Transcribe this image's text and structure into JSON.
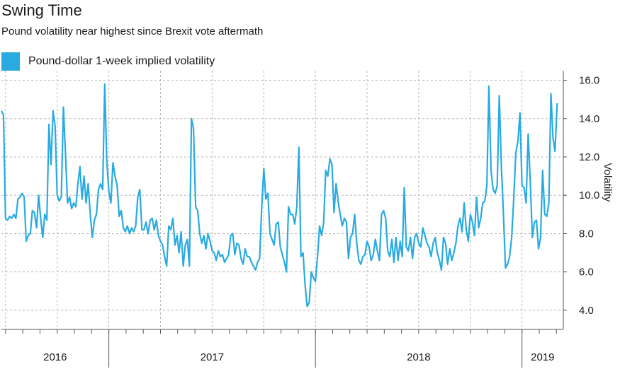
{
  "header": {
    "title": "Swing Time",
    "subtitle": "Pound volatility near highest since Brexit vote aftermath"
  },
  "legend": {
    "label": "Pound-dollar 1-week implied volatility",
    "color": "#29ABE2"
  },
  "chart_data": {
    "type": "line",
    "title": "Swing Time",
    "subtitle": "Pound volatility near highest since Brexit vote aftermath",
    "ylabel": "Volatility",
    "xlabel": "",
    "ylim": [
      3.0,
      16.5
    ],
    "yticks": [
      4.0,
      6.0,
      8.0,
      10.0,
      12.0,
      14.0,
      16.0
    ],
    "ytick_labels": [
      "4.0",
      "6.0",
      "8.0",
      "10.0",
      "12.0",
      "14.0",
      "16.0"
    ],
    "xlim": [
      2016.48,
      2019.2
    ],
    "year_labels": [
      {
        "label": "2016",
        "center": 2016.74
      },
      {
        "label": "2017",
        "center": 2017.5
      },
      {
        "label": "2018",
        "center": 2018.5
      },
      {
        "label": "2019",
        "center": 2019.1
      }
    ],
    "year_boundaries": [
      2017.0,
      2018.0,
      2019.0
    ],
    "grid": true,
    "legend_position": "top-left",
    "series": [
      {
        "name": "Pound-dollar 1-week implied volatility",
        "color": "#29ABE2",
        "x": [
          2016.48,
          2016.49,
          2016.5,
          2016.51,
          2016.52,
          2016.53,
          2016.54,
          2016.55,
          2016.56,
          2016.57,
          2016.58,
          2016.59,
          2016.6,
          2016.61,
          2016.62,
          2016.63,
          2016.64,
          2016.65,
          2016.66,
          2016.67,
          2016.68,
          2016.69,
          2016.7,
          2016.71,
          2016.72,
          2016.73,
          2016.74,
          2016.75,
          2016.76,
          2016.77,
          2016.78,
          2016.79,
          2016.8,
          2016.81,
          2016.82,
          2016.83,
          2016.84,
          2016.85,
          2016.86,
          2016.87,
          2016.88,
          2016.89,
          2016.9,
          2016.91,
          2016.92,
          2016.93,
          2016.94,
          2016.95,
          2016.96,
          2016.97,
          2016.98,
          2016.99,
          2017.0,
          2017.01,
          2017.02,
          2017.03,
          2017.04,
          2017.05,
          2017.06,
          2017.07,
          2017.08,
          2017.09,
          2017.1,
          2017.11,
          2017.12,
          2017.13,
          2017.14,
          2017.15,
          2017.16,
          2017.17,
          2017.18,
          2017.19,
          2017.2,
          2017.21,
          2017.22,
          2017.23,
          2017.24,
          2017.25,
          2017.26,
          2017.27,
          2017.28,
          2017.29,
          2017.3,
          2017.31,
          2017.32,
          2017.33,
          2017.34,
          2017.35,
          2017.36,
          2017.37,
          2017.38,
          2017.39,
          2017.4,
          2017.41,
          2017.42,
          2017.43,
          2017.44,
          2017.45,
          2017.46,
          2017.47,
          2017.48,
          2017.49,
          2017.5,
          2017.51,
          2017.52,
          2017.53,
          2017.54,
          2017.55,
          2017.56,
          2017.57,
          2017.58,
          2017.59,
          2017.6,
          2017.61,
          2017.62,
          2017.63,
          2017.64,
          2017.65,
          2017.66,
          2017.67,
          2017.68,
          2017.69,
          2017.7,
          2017.71,
          2017.72,
          2017.73,
          2017.74,
          2017.75,
          2017.76,
          2017.77,
          2017.78,
          2017.79,
          2017.8,
          2017.81,
          2017.82,
          2017.83,
          2017.84,
          2017.85,
          2017.86,
          2017.87,
          2017.88,
          2017.89,
          2017.9,
          2017.91,
          2017.92,
          2017.93,
          2017.94,
          2017.95,
          2017.96,
          2017.97,
          2017.98,
          2017.99,
          2018.0,
          2018.01,
          2018.02,
          2018.03,
          2018.04,
          2018.05,
          2018.06,
          2018.07,
          2018.08,
          2018.09,
          2018.1,
          2018.11,
          2018.12,
          2018.13,
          2018.14,
          2018.15,
          2018.16,
          2018.17,
          2018.18,
          2018.19,
          2018.2,
          2018.21,
          2018.22,
          2018.23,
          2018.24,
          2018.25,
          2018.26,
          2018.27,
          2018.28,
          2018.29,
          2018.3,
          2018.31,
          2018.32,
          2018.33,
          2018.34,
          2018.35,
          2018.36,
          2018.37,
          2018.38,
          2018.39,
          2018.4,
          2018.41,
          2018.42,
          2018.43,
          2018.44,
          2018.45,
          2018.46,
          2018.47,
          2018.48,
          2018.49,
          2018.5,
          2018.51,
          2018.52,
          2018.53,
          2018.54,
          2018.55,
          2018.56,
          2018.57,
          2018.58,
          2018.59,
          2018.6,
          2018.61,
          2018.62,
          2018.63,
          2018.64,
          2018.65,
          2018.66,
          2018.67,
          2018.68,
          2018.69,
          2018.7,
          2018.71,
          2018.72,
          2018.73,
          2018.74,
          2018.75,
          2018.76,
          2018.77,
          2018.78,
          2018.79,
          2018.8,
          2018.81,
          2018.82,
          2018.83,
          2018.84,
          2018.85,
          2018.86,
          2018.87,
          2018.88,
          2018.89,
          2018.9,
          2018.91,
          2018.92,
          2018.93,
          2018.94,
          2018.95,
          2018.96,
          2018.97,
          2018.98,
          2018.99,
          2019.0,
          2019.01,
          2019.02,
          2019.03,
          2019.04,
          2019.05,
          2019.06,
          2019.07,
          2019.08,
          2019.09,
          2019.1,
          2019.11,
          2019.12,
          2019.13,
          2019.14,
          2019.15,
          2019.16,
          2019.17
        ],
        "values": [
          14.4,
          14.2,
          8.8,
          8.7,
          8.9,
          8.8,
          9.0,
          8.8,
          9.8,
          9.9,
          10.1,
          9.9,
          7.6,
          7.9,
          8.0,
          9.2,
          9.1,
          8.3,
          10.0,
          8.8,
          7.8,
          9.0,
          8.7,
          13.7,
          11.6,
          14.4,
          13.6,
          10.0,
          9.7,
          9.9,
          14.6,
          12.2,
          9.6,
          9.9,
          9.3,
          9.6,
          9.4,
          10.6,
          11.5,
          9.8,
          11.0,
          9.6,
          10.6,
          9.0,
          7.8,
          8.7,
          9.0,
          10.3,
          10.6,
          10.3,
          15.8,
          11.8,
          10.2,
          9.6,
          11.7,
          11.0,
          10.5,
          8.9,
          9.2,
          8.3,
          8.1,
          8.4,
          8.0,
          8.3,
          8.1,
          8.4,
          9.9,
          10.3,
          8.2,
          8.2,
          8.6,
          8.0,
          8.7,
          8.8,
          8.2,
          8.7,
          7.9,
          7.6,
          7.4,
          6.8,
          6.3,
          8.4,
          8.2,
          8.8,
          7.4,
          7.9,
          7.0,
          8.1,
          6.3,
          7.4,
          7.7,
          6.3,
          14.0,
          13.5,
          9.4,
          9.2,
          8.0,
          7.5,
          7.9,
          7.2,
          8.0,
          7.6,
          7.1,
          7.0,
          6.6,
          7.1,
          6.8,
          6.9,
          6.5,
          6.7,
          6.9,
          7.9,
          8.0,
          6.9,
          7.5,
          7.4,
          6.7,
          6.4,
          7.2,
          6.8,
          6.8,
          6.5,
          6.3,
          6.1,
          6.5,
          6.7,
          9.3,
          11.4,
          9.8,
          10.1,
          8.0,
          7.7,
          7.4,
          8.5,
          8.6,
          7.3,
          6.9,
          6.5,
          6.0,
          9.4,
          9.0,
          9.0,
          8.5,
          9.4,
          12.5,
          6.8,
          7.0,
          5.3,
          4.2,
          4.4,
          6.0,
          5.7,
          5.5,
          6.8,
          8.4,
          7.9,
          8.6,
          11.3,
          11.0,
          11.9,
          11.6,
          9.1,
          10.6,
          9.7,
          9.0,
          8.4,
          8.8,
          8.6,
          6.7,
          7.8,
          8.0,
          9.0,
          7.5,
          6.6,
          6.4,
          6.8,
          6.9,
          7.6,
          7.3,
          6.6,
          6.9,
          7.7,
          7.1,
          6.6,
          9.0,
          9.2,
          8.8,
          7.1,
          6.8,
          7.7,
          6.5,
          7.8,
          6.6,
          7.6,
          6.8,
          10.4,
          7.3,
          7.1,
          7.8,
          6.7,
          7.8,
          8.0,
          7.5,
          7.3,
          8.3,
          7.9,
          7.5,
          7.3,
          6.8,
          7.5,
          7.8,
          7.0,
          6.6,
          6.1,
          7.8,
          7.5,
          6.4,
          7.2,
          6.6,
          7.0,
          7.5,
          8.4,
          8.8,
          8.1,
          9.6,
          8.2,
          7.6,
          9.0,
          8.6,
          7.9,
          9.9,
          8.3,
          8.8,
          9.6,
          9.7,
          10.5,
          15.7,
          11.3,
          10.3,
          10.1,
          10.5,
          15.2,
          11.6,
          9.0,
          6.2,
          6.4,
          6.8,
          7.8,
          9.8,
          12.2,
          12.8,
          14.3,
          10.5,
          10.4,
          9.6,
          13.2,
          10.7,
          7.8,
          8.6,
          8.7,
          7.2,
          7.8,
          11.3,
          9.0,
          8.9,
          9.6,
          15.3,
          13.0,
          12.3,
          14.8
        ]
      }
    ]
  }
}
